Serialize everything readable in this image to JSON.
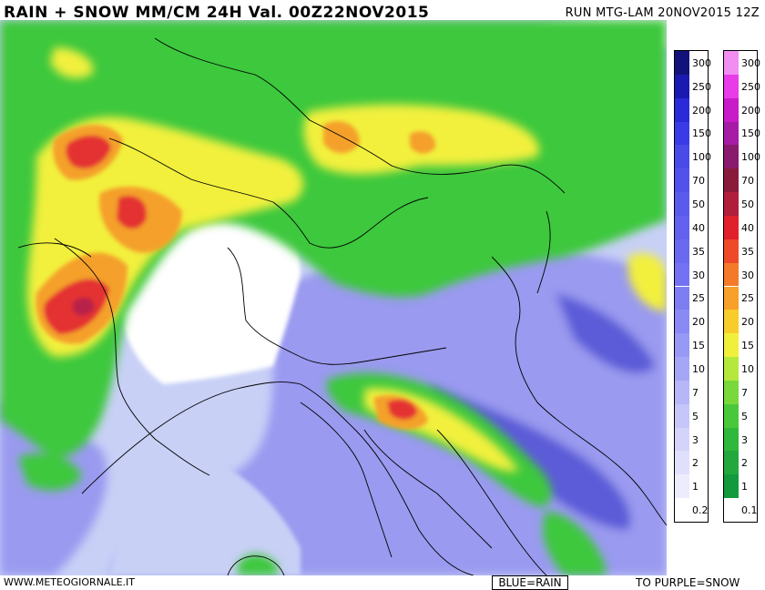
{
  "header": {
    "title": "RAIN + SNOW MM/CM 24H Val. 00Z22NOV2015",
    "run": "RUN MTG-LAM 20NOV2015 12Z"
  },
  "footer": {
    "site": "WWW.METEOGIORNALE.IT",
    "blue_label": "BLUE=RAIN",
    "purple_label": "TO PURPLE=SNOW"
  },
  "legend_rain": {
    "levels": [
      "300",
      "250",
      "200",
      "150",
      "100",
      "70",
      "50",
      "40",
      "35",
      "30",
      "25",
      "20",
      "15",
      "10",
      "7",
      "5",
      "3",
      "2",
      "1",
      "0.2"
    ],
    "colors": [
      "#12127a",
      "#1a1ab0",
      "#2a2ad8",
      "#3a3ae6",
      "#4a4ae8",
      "#5252ea",
      "#5a5aec",
      "#6262ee",
      "#6a6af0",
      "#7272f2",
      "#7e7ef3",
      "#8a8af4",
      "#9898f5",
      "#a6a6f6",
      "#b6b6f8",
      "#c6c6fa",
      "#d4d4fb",
      "#e0e0fc",
      "#ececfd",
      "#ffffff"
    ]
  },
  "legend_snow": {
    "levels": [
      "300",
      "250",
      "200",
      "150",
      "100",
      "70",
      "50",
      "40",
      "35",
      "30",
      "25",
      "20",
      "15",
      "10",
      "7",
      "5",
      "3",
      "2",
      "1",
      "0.1"
    ],
    "colors": [
      "#f28ef2",
      "#e83ce8",
      "#c81cc8",
      "#a61ca6",
      "#8a1a6e",
      "#8a1a3c",
      "#b01e3c",
      "#e0202a",
      "#ee4a2a",
      "#f47a2a",
      "#f7a02a",
      "#f8cc2a",
      "#f0f03c",
      "#b4e83c",
      "#7ad83c",
      "#4ac83c",
      "#30b83c",
      "#22a83c",
      "#129a3c",
      "#ffffff"
    ]
  },
  "map": {
    "colors": {
      "sea": "#ffffff",
      "rain_light": "#c8d0f6",
      "rain_mid": "#9a9af0",
      "rain_heavy": "#5c5cd8",
      "snow_green": "#3ec83c",
      "snow_darkgreen": "#1aa03c",
      "snow_yellow": "#f2f03c",
      "snow_orange": "#f4a02a",
      "snow_red": "#e43030",
      "snow_max": "#b8204a",
      "border": "#000000"
    }
  }
}
